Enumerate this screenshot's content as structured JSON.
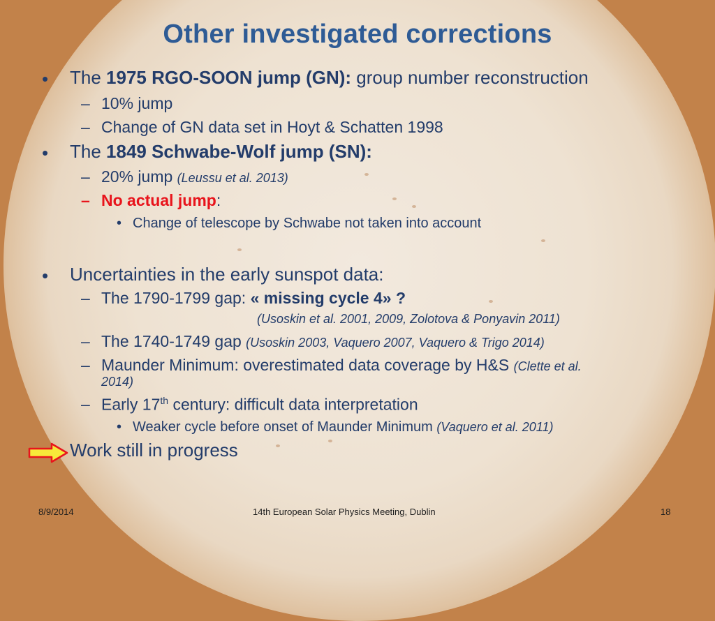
{
  "slide": {
    "title": "Other investigated corrections",
    "items": [
      {
        "pre": "The ",
        "bold": "1975 RGO-SOON jump (GN):",
        "post": " group number reconstruction"
      },
      {
        "text": "10% jump"
      },
      {
        "text": "Change of GN data set in Hoyt & Schatten 1998"
      },
      {
        "pre": "The ",
        "bold": "1849 Schwabe-Wolf jump (SN):"
      },
      {
        "text": "20% jump ",
        "ital": "(Leussu et al. 2013)"
      },
      {
        "red": "No actual jump",
        "post": ":"
      },
      {
        "text": "Change of telescope by Schwabe not taken into account"
      },
      {
        "text": "Uncertainties in the early sunspot data:"
      },
      {
        "pre": "The 1790-1799 gap: ",
        "bold": "« missing cycle 4» ?"
      },
      {
        "ital": "(Usoskin et al. 2001, 2009, Zolotova & Ponyavin 2011)"
      },
      {
        "text": "The 1740-1749 gap ",
        "ital": "(Usoskin 2003, Vaquero 2007, Vaquero & Trigo 2014)"
      },
      {
        "text": "Maunder Minimum: overestimated data coverage by H&S ",
        "ital": "(Clette et al.",
        "ital2": "2014)"
      },
      {
        "pre": "Early 17",
        "sup": "th",
        "post": " century: difficult data interpretation"
      },
      {
        "text": "Weaker cycle before onset of Maunder Minimum ",
        "ital": "(Vaquero et al. 2011)"
      },
      {
        "text": "Work still in progress"
      }
    ],
    "bullets": {
      "l1": "•",
      "l2": "–",
      "l3": "•"
    }
  },
  "footer": {
    "date": "8/9/2014",
    "event": "14th European Solar Physics Meeting, Dublin",
    "page": "18"
  },
  "colors": {
    "title": "#2e5b95",
    "text": "#233c6a",
    "highlight": "#e8141c",
    "arrow_fill": "#f7e93a",
    "arrow_stroke": "#e8141c"
  }
}
